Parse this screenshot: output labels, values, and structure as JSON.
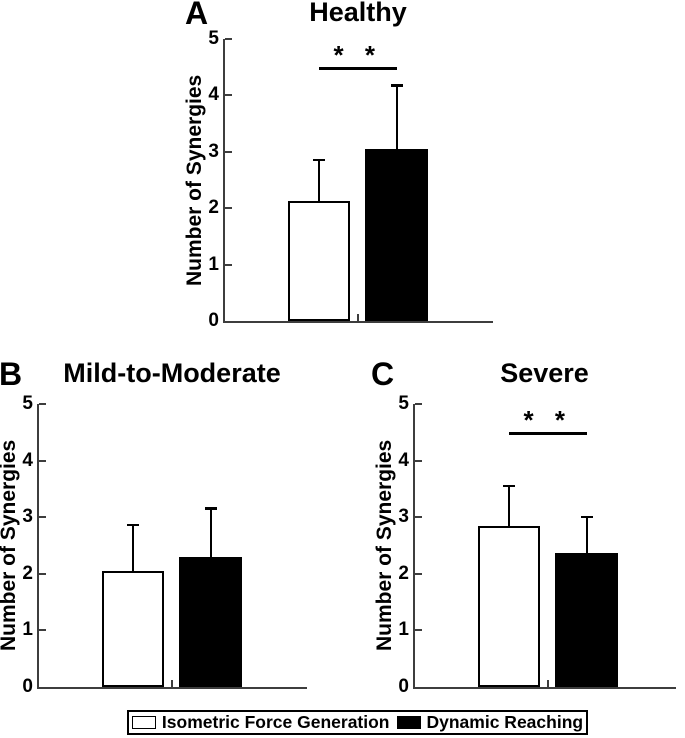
{
  "style": {
    "background": "#ffffff",
    "axis_color": "#3d3d3d",
    "bar_outline": "#000000",
    "text_color": "#000000"
  },
  "legend": {
    "position": "bottom",
    "items": [
      {
        "label": "Isometric Force Generation",
        "fill": "#ffffff"
      },
      {
        "label": "Dynamic Reaching",
        "fill": "#000000"
      }
    ]
  },
  "chart_data": [
    {
      "type": "bar",
      "panel_label": "A",
      "title": "Healthy",
      "xlabel": "",
      "ylabel": "Number of Synergies",
      "ylim": [
        0,
        5
      ],
      "yticks": [
        0,
        1,
        2,
        3,
        4,
        5
      ],
      "grid": false,
      "categories": [
        "Isometric Force Generation",
        "Dynamic Reaching"
      ],
      "series": [
        {
          "name": "Isometric Force Generation",
          "value": 2.12,
          "error_upper": 2.88,
          "fill": "#ffffff"
        },
        {
          "name": "Dynamic Reaching",
          "value": 3.05,
          "error_upper": 4.2,
          "fill": "#000000"
        }
      ],
      "significance": {
        "present": true,
        "label": "* *",
        "y": 4.5
      }
    },
    {
      "type": "bar",
      "panel_label": "B",
      "title": "Mild-to-Moderate",
      "xlabel": "",
      "ylabel": "Number of Synergies",
      "ylim": [
        0,
        5
      ],
      "yticks": [
        0,
        1,
        2,
        3,
        4,
        5
      ],
      "grid": false,
      "categories": [
        "Isometric Force Generation",
        "Dynamic Reaching"
      ],
      "series": [
        {
          "name": "Isometric Force Generation",
          "value": 2.05,
          "error_upper": 2.88,
          "fill": "#ffffff"
        },
        {
          "name": "Dynamic Reaching",
          "value": 2.3,
          "error_upper": 3.18,
          "fill": "#000000"
        }
      ],
      "significance": {
        "present": false,
        "label": "",
        "y": null
      }
    },
    {
      "type": "bar",
      "panel_label": "C",
      "title": "Severe",
      "xlabel": "",
      "ylabel": "Number of Synergies",
      "ylim": [
        0,
        5
      ],
      "yticks": [
        0,
        1,
        2,
        3,
        4,
        5
      ],
      "grid": false,
      "categories": [
        "Isometric Force Generation",
        "Dynamic Reaching"
      ],
      "series": [
        {
          "name": "Isometric Force Generation",
          "value": 2.85,
          "error_upper": 3.57,
          "fill": "#ffffff"
        },
        {
          "name": "Dynamic Reaching",
          "value": 2.37,
          "error_upper": 3.03,
          "fill": "#000000"
        }
      ],
      "significance": {
        "present": true,
        "label": "* *",
        "y": 4.5
      }
    }
  ]
}
